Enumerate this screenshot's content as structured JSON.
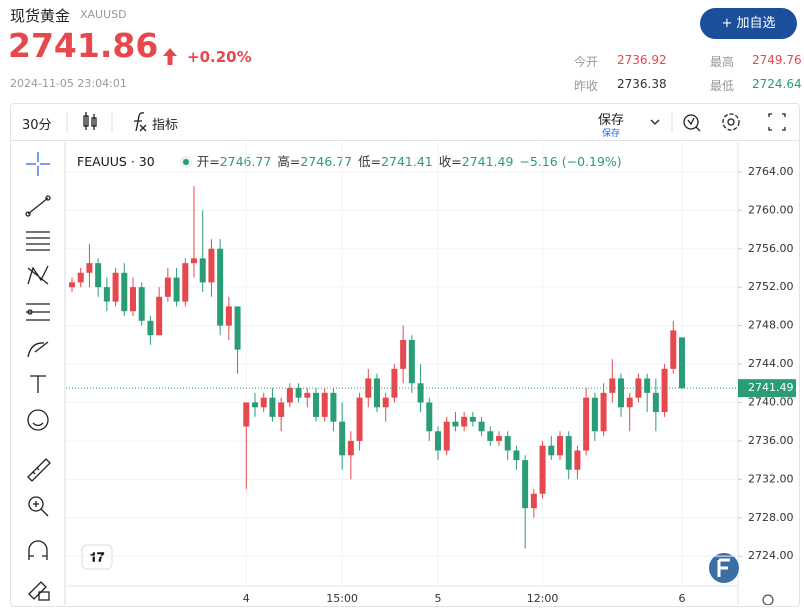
{
  "header": {
    "title": "现货黄金",
    "symbol": "XAUUSD",
    "price": "2741.86",
    "change": "+0.20%",
    "time": "2024-11-05 23:04:01",
    "button": "+ 加自选",
    "stats": [
      {
        "label": "今开",
        "value": "2736.92"
      },
      {
        "label": "最高",
        "value": "2749.76"
      },
      {
        "label": "昨收",
        "value": "2736.38"
      },
      {
        "label": "最低",
        "value": "2724.64"
      }
    ]
  },
  "toolbar": {
    "interval": "30分",
    "indicators": "指标",
    "save": "保存",
    "save_status": "保存"
  },
  "chart_data": {
    "type": "candlestick",
    "legend": {
      "symbol": "FEAUUS · 30",
      "labels": [
        "开=",
        "高=",
        "低=",
        "收="
      ],
      "change": "−5.16 (−0.19%)"
    },
    "up_color": "#e5484d",
    "down_color": "#2a9d77",
    "categories": [
      null,
      null,
      null,
      null,
      null,
      null,
      null,
      null,
      null,
      null,
      null,
      null,
      null,
      null,
      null,
      null,
      null,
      null,
      null,
      null,
      "4",
      null,
      null,
      null,
      null,
      null,
      null,
      null,
      null,
      null,
      null,
      "15:00",
      null,
      null,
      null,
      null,
      null,
      null,
      null,
      null,
      null,
      null,
      "5",
      null,
      null,
      null,
      null,
      null,
      null,
      null,
      null,
      null,
      null,
      null,
      "12:00",
      null,
      null,
      null,
      null,
      null,
      null,
      null,
      null,
      null,
      null,
      null,
      null,
      null,
      null,
      null,
      "6"
    ],
    "open": [
      2752,
      2752.5,
      2753.5,
      2754.5,
      2752,
      2750.5,
      2753.5,
      2749.5,
      2752,
      2748.5,
      2747,
      2751,
      2753,
      2750.5,
      2754.5,
      2755,
      2752.5,
      2756,
      2748,
      2750,
      2737.5,
      2740,
      2739.5,
      2740.5,
      2738.5,
      2740,
      2741.5,
      2740.5,
      2741,
      2738.5,
      2741,
      2738,
      2734.5,
      2736,
      2740.5,
      2742.5,
      2739.5,
      2740.5,
      2743.5,
      2746.5,
      2742,
      2740,
      2737,
      2735,
      2738,
      2737.5,
      2738.5,
      2738,
      2737,
      2736,
      2736.5,
      2735,
      2734,
      2729,
      2730.5,
      2735.5,
      2734.5,
      2736.5,
      2733,
      2735,
      2740.5,
      2737,
      2741,
      2742.5,
      2739.5,
      2740.5,
      2742.5,
      2741,
      2739,
      2743.5,
      2746.77
    ],
    "high": [
      2753,
      2754,
      2756.5,
      2755,
      2753,
      2754,
      2754.5,
      2753,
      2752.5,
      2749,
      2752,
      2754,
      2754,
      2755,
      2762.5,
      2760,
      2757,
      2757,
      2751,
      2750,
      2740,
      2741,
      2741,
      2741.5,
      2740.5,
      2742,
      2742,
      2741.5,
      2741.5,
      2741.5,
      2741.5,
      2740,
      2737,
      2741,
      2743.5,
      2743,
      2741,
      2744,
      2748,
      2747,
      2744,
      2740.5,
      2737.5,
      2738.5,
      2739,
      2739,
      2739,
      2738.5,
      2737.5,
      2737,
      2737,
      2735.5,
      2734.5,
      2731,
      2736,
      2736.5,
      2737,
      2737,
      2735.5,
      2741.5,
      2741,
      2742,
      2744.5,
      2743,
      2741,
      2743,
      2743,
      2742.5,
      2744,
      2748.5,
      2746.77
    ],
    "low": [
      2751.5,
      2752,
      2752,
      2751,
      2749.5,
      2750,
      2749,
      2749,
      2748,
      2746,
      2747,
      2750.5,
      2750,
      2750,
      2753,
      2751.5,
      2751,
      2747,
      2746.5,
      2743,
      2731,
      2738.5,
      2739,
      2738,
      2737,
      2739.5,
      2740,
      2739.5,
      2738,
      2738,
      2737,
      2733,
      2732,
      2735,
      2739.5,
      2739,
      2738,
      2740,
      2742,
      2741,
      2739,
      2736,
      2734,
      2734.5,
      2737,
      2737,
      2737.5,
      2736.5,
      2735.5,
      2735.5,
      2734,
      2733,
      2724.8,
      2728,
      2730,
      2734,
      2734,
      2732,
      2732,
      2734.5,
      2736,
      2736.5,
      2740,
      2738.5,
      2737,
      2740,
      2739,
      2737,
      2738.5,
      2743,
      2741.41
    ],
    "close": [
      2752.5,
      2753.5,
      2754.5,
      2752,
      2750.5,
      2753.5,
      2749.5,
      2752,
      2748.5,
      2747,
      2751,
      2753,
      2750.5,
      2754.5,
      2755,
      2752.5,
      2756,
      2748,
      2750,
      2745.5,
      2740,
      2739.5,
      2740.5,
      2738.5,
      2740,
      2741.5,
      2740.5,
      2741,
      2738.5,
      2741,
      2738,
      2734.5,
      2736,
      2740.5,
      2742.5,
      2739.5,
      2740.5,
      2743.5,
      2746.5,
      2742,
      2740,
      2737,
      2735,
      2738,
      2737.5,
      2738.5,
      2738,
      2737,
      2736,
      2736.5,
      2735,
      2734,
      2729,
      2730.5,
      2735.5,
      2734.5,
      2736.5,
      2733,
      2735,
      2740.5,
      2737,
      2741,
      2742.5,
      2739.5,
      2740.5,
      2742.5,
      2741,
      2739,
      2743.5,
      2747.5,
      2741.49
    ],
    "ylim": [
      2721,
      2766.8
    ],
    "yticks": [
      {
        "value": 2724,
        "label": "2724.00"
      },
      {
        "value": 2728,
        "label": "2728.00"
      },
      {
        "value": 2732,
        "label": "2732.00"
      },
      {
        "value": 2736,
        "label": "2736.00"
      },
      {
        "value": 2740,
        "label": "2740.00"
      },
      {
        "value": 2744,
        "label": "2744.00"
      },
      {
        "value": 2748,
        "label": "2748.00"
      },
      {
        "value": 2752,
        "label": "2752.00"
      },
      {
        "value": 2756,
        "label": "2756.00"
      },
      {
        "value": 2760,
        "label": "2760.00"
      },
      {
        "value": 2764,
        "label": "2764.00"
      }
    ],
    "grid": true
  }
}
